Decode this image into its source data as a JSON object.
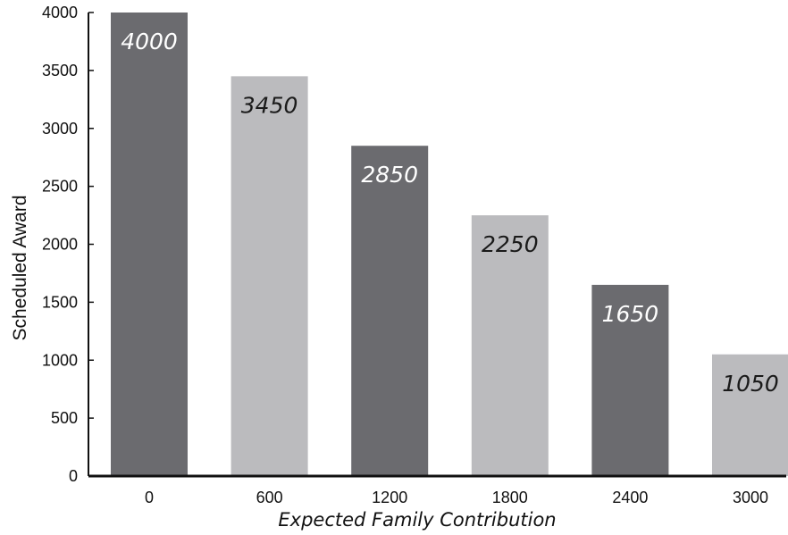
{
  "chart_data": {
    "type": "bar",
    "title": "",
    "xlabel": "Expected Family Contribution",
    "ylabel": "Scheduled Award",
    "categories": [
      "0",
      "600",
      "1200",
      "1800",
      "2400",
      "3000"
    ],
    "values": [
      4000,
      3450,
      2850,
      2250,
      1650,
      1050
    ],
    "data_labels": [
      "4000",
      "3450",
      "2850",
      "2250",
      "1650",
      "1050"
    ],
    "ylim": [
      0,
      4000
    ],
    "yticks": [
      0,
      500,
      1000,
      1500,
      2000,
      2500,
      3000,
      3500,
      4000
    ],
    "grid": false,
    "legend": "none",
    "colors": {
      "dark_bar": "#6b6b6f",
      "light_bar": "#bbbbbe",
      "label_on_dark": "#ffffff",
      "label_on_light": "#1a1a1a",
      "axis": "#111111"
    }
  }
}
